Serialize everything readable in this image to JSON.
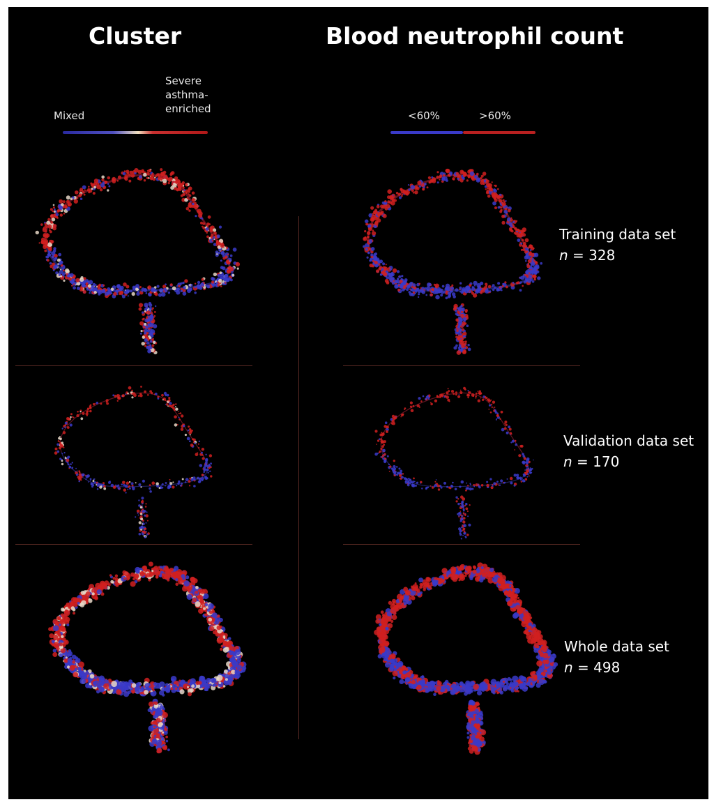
{
  "titles": {
    "left": "Cluster",
    "right": "Blood neutrophil count"
  },
  "cluster_legend": {
    "low": "Mixed",
    "high_line1": "Severe",
    "high_line2": "asthma-",
    "high_line3": "enriched"
  },
  "neutrophil_legend": {
    "low": "<60%",
    "high": ">60%"
  },
  "datasets": [
    {
      "name": "Training data set",
      "n_prefix": "n",
      "n_value": " = 328"
    },
    {
      "name": "Validation data set",
      "n_prefix": "n",
      "n_value": " = 170"
    },
    {
      "name": "Whole data set",
      "n_prefix": "n",
      "n_value": " = 498"
    }
  ],
  "colors": {
    "background": "#000000",
    "low": "#3a3ac8",
    "high": "#d02020",
    "mid": "#e8d8c8"
  }
}
